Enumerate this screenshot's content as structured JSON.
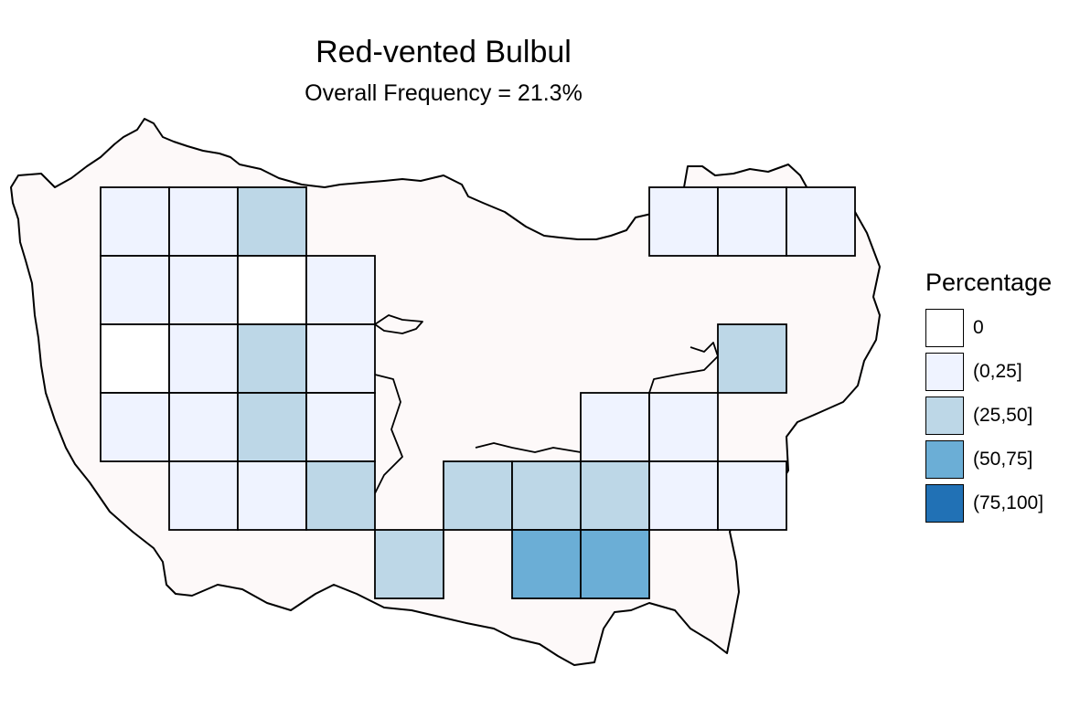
{
  "title": "Red-vented Bulbul",
  "subtitle": "Overall Frequency = 21.3%",
  "legend": {
    "title": "Percentage",
    "items": [
      {
        "label": "0",
        "color": "#ffffff"
      },
      {
        "label": "(0,25]",
        "color": "#eff3ff"
      },
      {
        "label": "(25,50]",
        "color": "#bdd7e7"
      },
      {
        "label": "(50,75]",
        "color": "#6baed6"
      },
      {
        "label": "(75,100]",
        "color": "#2171b5"
      }
    ]
  },
  "map_colors": {
    "land_fill": "#fdf9f9",
    "outline": "#000000"
  },
  "grid_cells": [
    {
      "row": 0,
      "col": 0,
      "category": 1
    },
    {
      "row": 0,
      "col": 1,
      "category": 1
    },
    {
      "row": 0,
      "col": 2,
      "category": 2
    },
    {
      "row": 0,
      "col": 8,
      "category": 1
    },
    {
      "row": 0,
      "col": 9,
      "category": 1
    },
    {
      "row": 0,
      "col": 10,
      "category": 1
    },
    {
      "row": 1,
      "col": 0,
      "category": 1
    },
    {
      "row": 1,
      "col": 1,
      "category": 1
    },
    {
      "row": 1,
      "col": 2,
      "category": 0
    },
    {
      "row": 1,
      "col": 3,
      "category": 1
    },
    {
      "row": 2,
      "col": 0,
      "category": 0
    },
    {
      "row": 2,
      "col": 1,
      "category": 1
    },
    {
      "row": 2,
      "col": 2,
      "category": 2
    },
    {
      "row": 2,
      "col": 3,
      "category": 1
    },
    {
      "row": 2,
      "col": 9,
      "category": 2
    },
    {
      "row": 3,
      "col": 0,
      "category": 1
    },
    {
      "row": 3,
      "col": 1,
      "category": 1
    },
    {
      "row": 3,
      "col": 2,
      "category": 2
    },
    {
      "row": 3,
      "col": 3,
      "category": 1
    },
    {
      "row": 3,
      "col": 7,
      "category": 1
    },
    {
      "row": 3,
      "col": 8,
      "category": 1
    },
    {
      "row": 4,
      "col": 1,
      "category": 1
    },
    {
      "row": 4,
      "col": 2,
      "category": 1
    },
    {
      "row": 4,
      "col": 3,
      "category": 2
    },
    {
      "row": 4,
      "col": 5,
      "category": 2
    },
    {
      "row": 4,
      "col": 6,
      "category": 2
    },
    {
      "row": 4,
      "col": 7,
      "category": 2
    },
    {
      "row": 4,
      "col": 8,
      "category": 1
    },
    {
      "row": 4,
      "col": 9,
      "category": 1
    },
    {
      "row": 5,
      "col": 4,
      "category": 2
    },
    {
      "row": 5,
      "col": 6,
      "category": 3
    },
    {
      "row": 5,
      "col": 7,
      "category": 3
    }
  ]
}
